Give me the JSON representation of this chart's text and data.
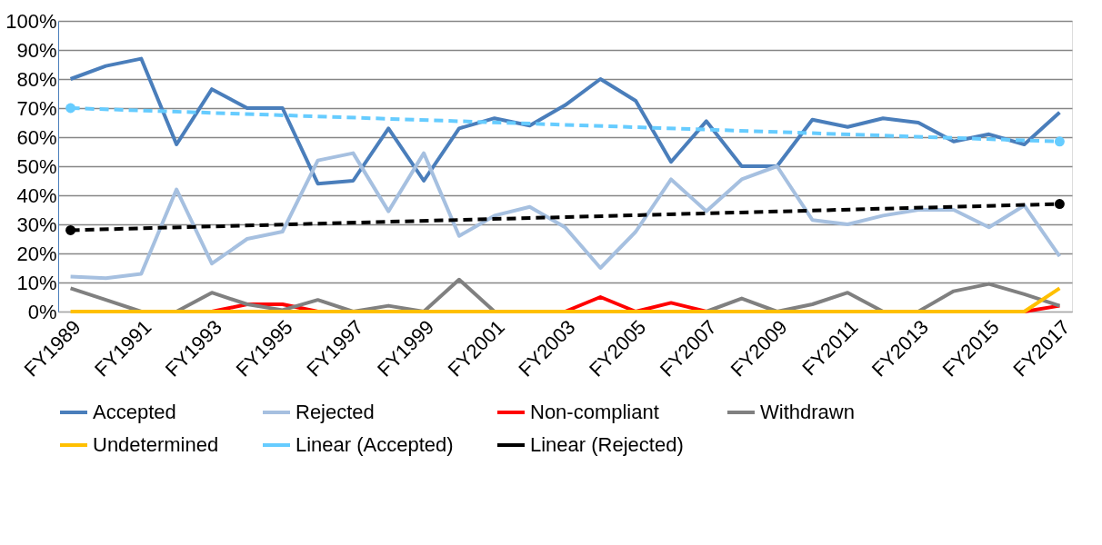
{
  "chart_data": {
    "type": "line",
    "categories": [
      "FY1989",
      null,
      "FY1991",
      null,
      "FY1993",
      null,
      "FY1995",
      null,
      "FY1997",
      null,
      "FY1999",
      null,
      "FY2001",
      null,
      "FY2003",
      null,
      "FY2005",
      null,
      "FY2007",
      null,
      "FY2009",
      null,
      "FY2011",
      null,
      "FY2013",
      null,
      "FY2015",
      null,
      "FY2017"
    ],
    "series": [
      {
        "name": "Accepted",
        "color": "#4a7ebb",
        "values": [
          80,
          84.5,
          87,
          57.5,
          76.5,
          70,
          70,
          44,
          45,
          63,
          45,
          63,
          66.5,
          64,
          71,
          80,
          72.5,
          51.5,
          65.5,
          50,
          50,
          66,
          63.5,
          66.5,
          65,
          58.5,
          61,
          57.5,
          68.5
        ]
      },
      {
        "name": "Rejected",
        "color": "#a6c0e0",
        "values": [
          12,
          11.5,
          13,
          42,
          16.5,
          25,
          27.5,
          52,
          54.5,
          34.5,
          54.5,
          26,
          33,
          36,
          29,
          15,
          27.5,
          45.5,
          34.5,
          45.5,
          50,
          31.5,
          30,
          33,
          35,
          35,
          29,
          36.5,
          19
        ]
      },
      {
        "name": "Non-compliant",
        "color": "#ff0000",
        "values": [
          null,
          null,
          null,
          null,
          0,
          2.5,
          2.5,
          0,
          null,
          null,
          null,
          null,
          null,
          null,
          0,
          5,
          0,
          3,
          0,
          null,
          null,
          null,
          null,
          null,
          null,
          null,
          null,
          0,
          2
        ]
      },
      {
        "name": "Withdrawn",
        "color": "#808080",
        "values": [
          8,
          4,
          0,
          0,
          6.5,
          2.5,
          0.5,
          4,
          0,
          2,
          0,
          11,
          0,
          0,
          0,
          0,
          0,
          0,
          0,
          4.5,
          0,
          2.5,
          6.5,
          0,
          0,
          7,
          9.5,
          6,
          2
        ]
      },
      {
        "name": "Undetermined",
        "color": "#ffc000",
        "values": [
          0,
          0,
          0,
          0,
          0,
          0,
          0,
          0,
          0,
          0,
          0,
          0,
          0,
          0,
          0,
          0,
          0,
          0,
          0,
          0,
          0,
          0,
          0,
          0,
          0,
          0,
          0,
          0,
          8
        ]
      },
      {
        "name": "Linear (Accepted)",
        "color": "#66ccff",
        "line_style": "dashed",
        "marker": "circle",
        "values": [
          70,
          null,
          null,
          null,
          null,
          null,
          null,
          null,
          null,
          null,
          null,
          null,
          null,
          null,
          null,
          null,
          null,
          null,
          null,
          null,
          null,
          null,
          null,
          null,
          null,
          null,
          null,
          null,
          58.5
        ]
      },
      {
        "name": "Linear (Rejected)",
        "color": "#000000",
        "line_style": "dashed",
        "marker": "circle",
        "values": [
          28,
          null,
          null,
          null,
          null,
          null,
          null,
          null,
          null,
          null,
          null,
          null,
          null,
          null,
          null,
          null,
          null,
          null,
          null,
          null,
          null,
          null,
          null,
          null,
          null,
          null,
          null,
          null,
          37
        ]
      }
    ],
    "ylim": [
      0,
      100
    ],
    "yticks": [
      {
        "value": 0,
        "label": "0%"
      },
      {
        "value": 10,
        "label": "10%"
      },
      {
        "value": 20,
        "label": "20%"
      },
      {
        "value": 30,
        "label": "30%"
      },
      {
        "value": 40,
        "label": "40%"
      },
      {
        "value": 50,
        "label": "50%"
      },
      {
        "value": 60,
        "label": "60%"
      },
      {
        "value": 70,
        "label": "70%"
      },
      {
        "value": 80,
        "label": "80%"
      },
      {
        "value": 90,
        "label": "90%"
      },
      {
        "value": 100,
        "label": "100%"
      }
    ],
    "grid": "y",
    "legend": "bottom",
    "marker": "none",
    "line_style": "solid"
  }
}
